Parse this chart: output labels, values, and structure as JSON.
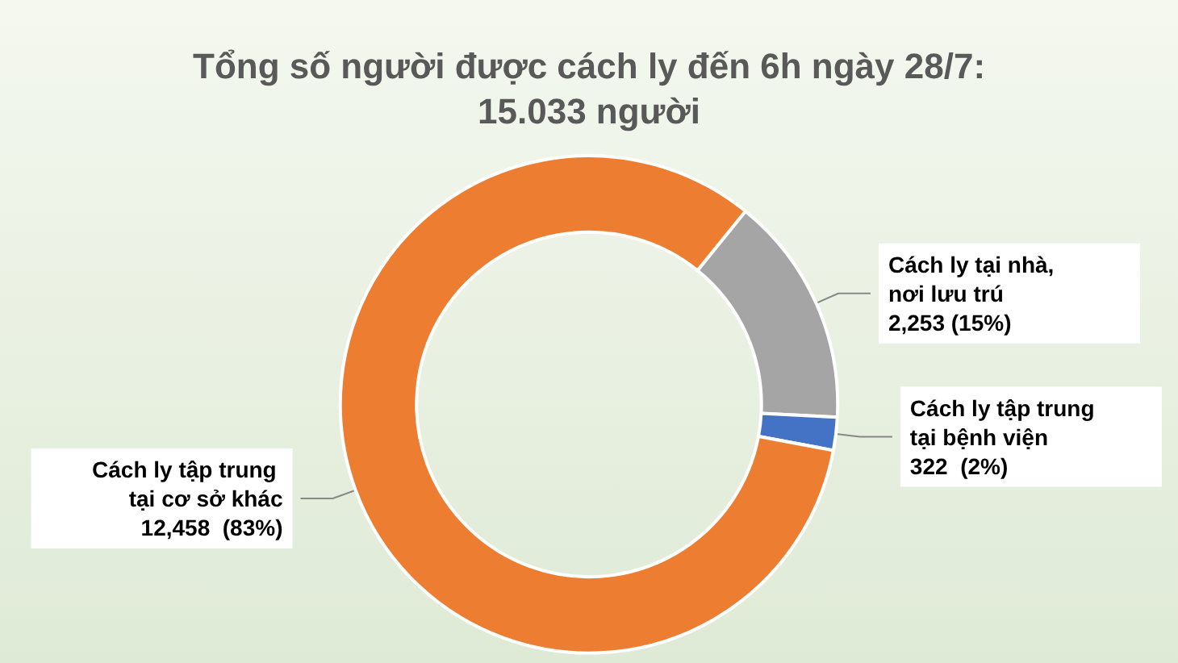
{
  "chart_data": {
    "type": "donut",
    "title": "Tổng số người được cách ly đến 6h ngày 28/7:\n15.033 người",
    "categories": [
      "Cách ly tại nhà, nơi lưu trú",
      "Cách ly tập trung tại bệnh viện",
      "Cách ly tập trung tại cơ sở khác"
    ],
    "values": [
      2253,
      322,
      12458
    ],
    "colors": [
      "#a5a5a5",
      "#4472c4",
      "#ed7d31"
    ],
    "value_labels": [
      "2,253 (15%)",
      "322  (2%)",
      "12,458  (83%)"
    ]
  }
}
